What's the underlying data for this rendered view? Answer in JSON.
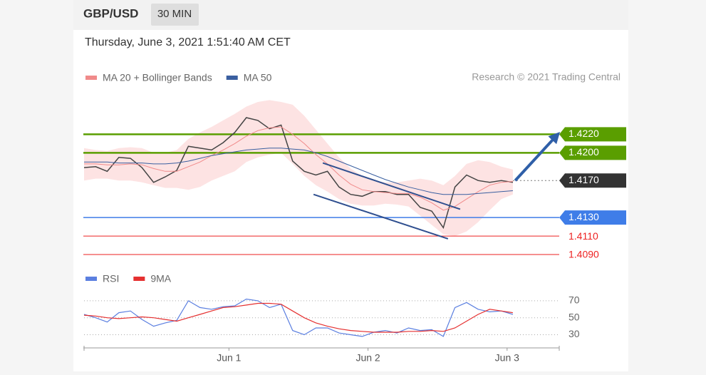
{
  "header": {
    "pair": "GBP/USD",
    "interval": "30 MIN",
    "timestamp": "Thursday, June 3, 2021 1:51:40 AM CET",
    "credit": "Research © 2021 Trading Central"
  },
  "chart_data": [
    {
      "type": "line",
      "x": [
        -25,
        -23,
        -21,
        -19,
        -17,
        -15,
        -13,
        -11,
        -9,
        -7,
        -5,
        -3,
        -1,
        1,
        3,
        5,
        7,
        9,
        11,
        13,
        15,
        17,
        19,
        21,
        23,
        25,
        27,
        29,
        31,
        33,
        35,
        37,
        39,
        41,
        43,
        45,
        47,
        49
      ],
      "xlim": [
        -25,
        57
      ],
      "ylim": [
        1.408,
        1.4265
      ],
      "series": [
        {
          "color": "#444444",
          "values": [
            1.4184,
            1.4185,
            1.418,
            1.4195,
            1.4194,
            1.4184,
            1.4168,
            1.4174,
            1.4181,
            1.4207,
            1.4205,
            1.4203,
            1.4211,
            1.4222,
            1.4238,
            1.4235,
            1.4226,
            1.423,
            1.4191,
            1.418,
            1.4176,
            1.418,
            1.4163,
            1.4155,
            1.4153,
            1.4158,
            1.4158,
            1.4155,
            1.4155,
            1.4141,
            1.4137,
            1.4119,
            1.4163,
            1.4176,
            1.417,
            1.4168,
            1.417,
            1.4168
          ]
        },
        {
          "name": "MA 20 + Bollinger Bands",
          "color": "#f08a8a",
          "band_color": "#fde3e3",
          "values": [
            1.4188,
            1.4188,
            1.4187,
            1.4187,
            1.4188,
            1.4187,
            1.4183,
            1.418,
            1.418,
            1.4185,
            1.419,
            1.4197,
            1.4203,
            1.421,
            1.4218,
            1.4224,
            1.4227,
            1.4228,
            1.422,
            1.421,
            1.4198,
            1.4188,
            1.4176,
            1.4166,
            1.416,
            1.4158,
            1.4157,
            1.4156,
            1.4156,
            1.4152,
            1.4146,
            1.4138,
            1.4142,
            1.415,
            1.4158,
            1.4165,
            1.4168,
            1.4169
          ],
          "upper": [
            1.4205,
            1.4203,
            1.4202,
            1.4205,
            1.4206,
            1.4205,
            1.42,
            1.42,
            1.4203,
            1.4215,
            1.4222,
            1.4228,
            1.4235,
            1.4242,
            1.425,
            1.4255,
            1.4257,
            1.4255,
            1.4252,
            1.424,
            1.4225,
            1.421,
            1.4195,
            1.4183,
            1.4175,
            1.417,
            1.4168,
            1.4168,
            1.417,
            1.4172,
            1.417,
            1.4165,
            1.4175,
            1.4188,
            1.4192,
            1.419,
            1.4185,
            1.4182
          ],
          "lower": [
            1.417,
            1.4172,
            1.4172,
            1.417,
            1.417,
            1.4168,
            1.4165,
            1.4162,
            1.4162,
            1.416,
            1.4163,
            1.417,
            1.4175,
            1.418,
            1.419,
            1.4195,
            1.4198,
            1.42,
            1.4188,
            1.4175,
            1.4165,
            1.4158,
            1.415,
            1.4145,
            1.4143,
            1.4143,
            1.4145,
            1.4144,
            1.4142,
            1.4132,
            1.4122,
            1.4112,
            1.411,
            1.4115,
            1.4125,
            1.4138,
            1.415,
            1.4155
          ]
        },
        {
          "name": "MA 50",
          "color": "#3a5fa0",
          "values": [
            1.419,
            1.419,
            1.419,
            1.4189,
            1.4189,
            1.4189,
            1.4188,
            1.4188,
            1.4189,
            1.4191,
            1.4194,
            1.4197,
            1.4199,
            1.4201,
            1.4203,
            1.4204,
            1.4205,
            1.4205,
            1.4204,
            1.4203,
            1.42,
            1.4196,
            1.4191,
            1.4186,
            1.4181,
            1.4176,
            1.4171,
            1.4167,
            1.4163,
            1.416,
            1.4157,
            1.4155,
            1.4155,
            1.4155,
            1.4156,
            1.4157,
            1.4158,
            1.4159
          ]
        }
      ],
      "levels": [
        {
          "value": 1.422,
          "label": "1.4220",
          "color": "#5a9e00",
          "style": "box",
          "dash": false
        },
        {
          "value": 1.42,
          "label": "1.4200",
          "color": "#5a9e00",
          "style": "box",
          "dash": false
        },
        {
          "value": 1.417,
          "label": "1.4170",
          "color": "#333333",
          "style": "box",
          "dash": true
        },
        {
          "value": 1.413,
          "label": "1.4130",
          "color": "#3f7de8",
          "style": "box",
          "dash": false
        },
        {
          "value": 1.411,
          "label": "1.4110",
          "color": "#ee2222",
          "style": "text",
          "dash": false
        },
        {
          "value": 1.409,
          "label": "1.4090",
          "color": "#ee2222",
          "style": "text",
          "dash": false
        }
      ],
      "trendlines": [
        {
          "x": [
            16.2,
            39.9
          ],
          "y": [
            1.4189,
            1.4139
          ],
          "color": "#2f4f8f",
          "arrow": false
        },
        {
          "x": [
            14.6,
            37.8
          ],
          "y": [
            1.4155,
            1.4107
          ],
          "color": "#2f4f8f",
          "arrow": false
        },
        {
          "x": [
            49.4,
            56.6
          ],
          "y": [
            1.417,
            1.4219
          ],
          "color": "#2f5fa8",
          "arrow": true
        }
      ]
    },
    {
      "type": "line",
      "x": [
        -25,
        -23,
        -21,
        -19,
        -17,
        -15,
        -13,
        -11,
        -9,
        -7,
        -5,
        -3,
        -1,
        1,
        3,
        5,
        7,
        9,
        11,
        13,
        15,
        17,
        19,
        21,
        23,
        25,
        27,
        29,
        31,
        33,
        35,
        37,
        39,
        41,
        43,
        45,
        47,
        49
      ],
      "xlim": [
        -25,
        57
      ],
      "ylim": [
        17,
        80
      ],
      "yticks": [
        70,
        50,
        30
      ],
      "grid": true,
      "xticks": [
        {
          "value": 0,
          "label": "Jun 1"
        },
        {
          "value": 24,
          "label": "Jun 2"
        },
        {
          "value": 48,
          "label": "Jun 3"
        }
      ],
      "series": [
        {
          "name": "RSI",
          "color": "#5b7fe0",
          "values": [
            54,
            50,
            45,
            56,
            58,
            48,
            40,
            44,
            47,
            70,
            62,
            60,
            63,
            64,
            72,
            70,
            62,
            66,
            35,
            30,
            38,
            38,
            32,
            30,
            28,
            33,
            35,
            32,
            38,
            35,
            36,
            28,
            62,
            68,
            60,
            57,
            58,
            54
          ]
        },
        {
          "name": "9MA",
          "color": "#e53030",
          "values": [
            53,
            52,
            50,
            49,
            50,
            51,
            50,
            48,
            46,
            50,
            54,
            58,
            62,
            63,
            65,
            67,
            67,
            66,
            58,
            50,
            44,
            40,
            37,
            35,
            34,
            33,
            33,
            33,
            34,
            34,
            35,
            34,
            38,
            46,
            54,
            60,
            58,
            56
          ]
        }
      ]
    }
  ]
}
